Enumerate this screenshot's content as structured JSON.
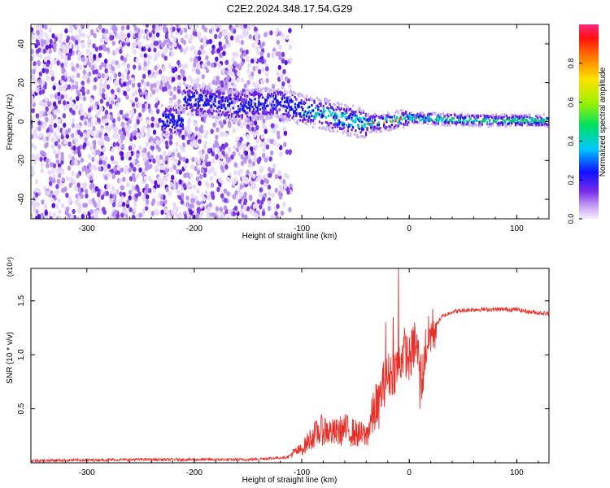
{
  "title": "C2E2.2024.348.17.54.G29",
  "colors": {
    "spectrum_low": "#9a6fe0",
    "spectrum_mid": "#1a18e8",
    "spectrum_band": "#00c8d0",
    "spectrum_peak": "#ff2a2a",
    "snr_line": "#e8302a",
    "axis": "#000000"
  },
  "chart_data": [
    {
      "type": "heatmap",
      "xlabel": "Height of straight line (km)",
      "ylabel": "Frequency (Hz)",
      "xlim": [
        -352,
        130
      ],
      "ylim": [
        -50,
        50
      ],
      "xticks": [
        -300,
        -200,
        -100,
        0,
        100
      ],
      "xtick_labels": [
        "-300",
        "-200",
        "-100",
        "0",
        "100"
      ],
      "yticks": [
        -40,
        -20,
        0,
        20,
        40
      ],
      "ytick_labels": [
        "-40",
        "-20",
        "0",
        "20",
        "40"
      ],
      "band_center": [
        {
          "x": -210,
          "y": 12
        },
        {
          "x": -160,
          "y": 8
        },
        {
          "x": -120,
          "y": 10
        },
        {
          "x": -100,
          "y": 6
        },
        {
          "x": -80,
          "y": 4
        },
        {
          "x": -60,
          "y": 1
        },
        {
          "x": -40,
          "y": -1
        },
        {
          "x": -20,
          "y": 0
        },
        {
          "x": 0,
          "y": 2
        },
        {
          "x": 40,
          "y": 1
        },
        {
          "x": 80,
          "y": 0.5
        },
        {
          "x": 130,
          "y": 0.5
        }
      ],
      "colorbar": {
        "label": "Normalized spectral amplitude",
        "range": [
          0.0,
          1.0
        ],
        "ticks": [
          0.0,
          0.2,
          0.4,
          0.6,
          0.8
        ],
        "tick_labels": [
          "0.0",
          "0.2",
          "0.4",
          "0.6",
          "0.8"
        ]
      }
    },
    {
      "type": "line",
      "xlabel": "Height of straight line (km)",
      "ylabel": "SNR (10 * v/v)",
      "multiplier": "(x10⁴)",
      "xlim": [
        -352,
        130
      ],
      "ylim": [
        0,
        1.8
      ],
      "xticks": [
        -300,
        -200,
        -100,
        0,
        100
      ],
      "xtick_labels": [
        "-300",
        "-200",
        "-100",
        "0",
        "100"
      ],
      "yticks": [
        0.5,
        1.0,
        1.5
      ],
      "ytick_labels": [
        "0.5",
        "1.0",
        "1.5"
      ],
      "series": [
        {
          "name": "SNR",
          "x": [
            -352,
            -250,
            -150,
            -115,
            -100,
            -90,
            -80,
            -70,
            -60,
            -50,
            -40,
            -30,
            -25,
            -20,
            -15,
            -10,
            -8,
            -5,
            0,
            5,
            10,
            12,
            15,
            20,
            30,
            40,
            60,
            80,
            100,
            110,
            120,
            130
          ],
          "y": [
            0.02,
            0.03,
            0.03,
            0.05,
            0.1,
            0.2,
            0.25,
            0.22,
            0.25,
            0.22,
            0.2,
            0.45,
            0.7,
            0.8,
            0.85,
            0.9,
            0.95,
            1.05,
            0.95,
            1.1,
            0.95,
            0.75,
            1.05,
            1.2,
            1.35,
            1.4,
            1.42,
            1.42,
            1.42,
            1.4,
            1.39,
            1.38
          ],
          "spikes": [
            {
              "x": -10,
              "y": 1.8
            },
            {
              "x": -22,
              "y": 1.3
            },
            {
              "x": -15,
              "y": 1.35
            },
            {
              "x": 10,
              "y": 0.5
            },
            {
              "x": 5,
              "y": 1.3
            }
          ]
        }
      ]
    }
  ]
}
